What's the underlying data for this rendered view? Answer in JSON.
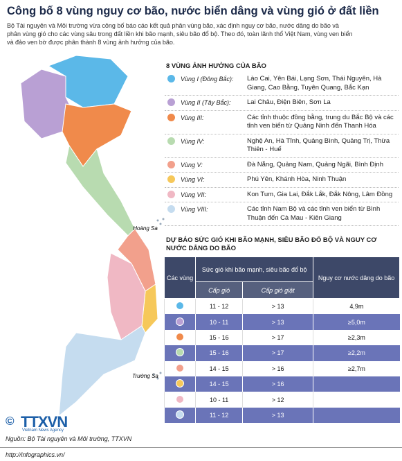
{
  "header": {
    "title": "Công bố 8 vùng nguy cơ bão, nước biển dâng và vùng gió ở đất liền",
    "intro": "Bộ Tài nguyên và Môi trường vừa công bố báo cáo kết quả phân vùng bão, xác định nguy cơ bão, nước dâng do bão và phân vùng gió cho các vùng sâu trong đất liền khi bão mạnh, siêu bão đổ bộ. Theo đó, toàn lãnh thổ Việt Nam, vùng ven biển và đảo ven bờ được phân thành 8 vùng ảnh hưởng của bão."
  },
  "map": {
    "labels": [
      "Hoàng Sa",
      "Trường Sa"
    ]
  },
  "regions": {
    "title": "8 VÙNG ẢNH HƯỞNG CỦA BÃO",
    "items": [
      {
        "name": "Vùng I (Đông Bắc):",
        "provinces": "Lào Cai, Yên Bái, Lạng Sơn, Thái Nguyên, Hà Giang, Cao Bằng, Tuyên Quang, Bắc Kạn",
        "color": "#5bb8e8"
      },
      {
        "name": "Vùng II (Tây Bắc):",
        "provinces": "Lai Châu, Điện Biên, Sơn La",
        "color": "#b9a0d4"
      },
      {
        "name": "Vùng III:",
        "provinces": "Các tỉnh thuộc đồng bằng, trung du Bắc Bộ và các tỉnh ven biển từ Quảng Ninh đến Thanh Hóa",
        "color": "#f08a4b"
      },
      {
        "name": "Vùng IV:",
        "provinces": "Nghệ An, Hà Tĩnh, Quảng Bình, Quảng Trị, Thừa Thiên - Huế",
        "color": "#b8dbb0"
      },
      {
        "name": "Vùng V:",
        "provinces": "Đà Nẵng, Quảng Nam, Quảng Ngãi, Bình Định",
        "color": "#f2a08c"
      },
      {
        "name": "Vùng VI:",
        "provinces": "Phú Yên, Khánh Hòa, Ninh Thuận",
        "color": "#f6c85a"
      },
      {
        "name": "Vùng VII:",
        "provinces": "Kon Tum, Gia Lai, Đắk Lắk, Đắk Nông, Lâm Đồng",
        "color": "#f0b8c4"
      },
      {
        "name": "Vùng VIII:",
        "provinces": "Các tỉnh Nam Bộ và các tỉnh ven biển từ Bình Thuận đến Cà Mau - Kiên Giang",
        "color": "#c5dcef"
      }
    ]
  },
  "table": {
    "title": "DỰ BÁO SỨC GIÓ KHI BÃO MẠNH, SIÊU BÃO ĐỔ BỘ VÀ NGUY CƠ NƯỚC DÂNG DO BÃO",
    "headers": {
      "region": "Các vùng",
      "wind_group": "Sức gió khi bão mạnh, siêu bão đổ bộ",
      "wind": "Cấp gió",
      "gust": "Cấp gió giật",
      "surge": "Nguy cơ nước dâng do bão"
    },
    "rows": [
      {
        "wind": "11 - 12",
        "gust": "> 13",
        "surge": "4,9m"
      },
      {
        "wind": "10 - 11",
        "gust": "> 13",
        "surge": "≥5,0m"
      },
      {
        "wind": "15 - 16",
        "gust": "> 17",
        "surge": "≥2,3m"
      },
      {
        "wind": "15 - 16",
        "gust": "> 17",
        "surge": "≥2,2m"
      },
      {
        "wind": "14 - 15",
        "gust": "> 16",
        "surge": "≥2,7m"
      },
      {
        "wind": "14 - 15",
        "gust": "> 16"
      },
      {
        "wind": "10 - 11",
        "gust": "> 12"
      },
      {
        "wind": "11 - 12",
        "gust": "> 13"
      }
    ]
  },
  "footer": {
    "copyright": "©",
    "logo": "TTXVN",
    "agency": "Vietnam News Agency",
    "source": "Nguồn: Bộ Tài nguyên và Môi trường, TTXVN",
    "url": "http://infographics.vn/"
  }
}
